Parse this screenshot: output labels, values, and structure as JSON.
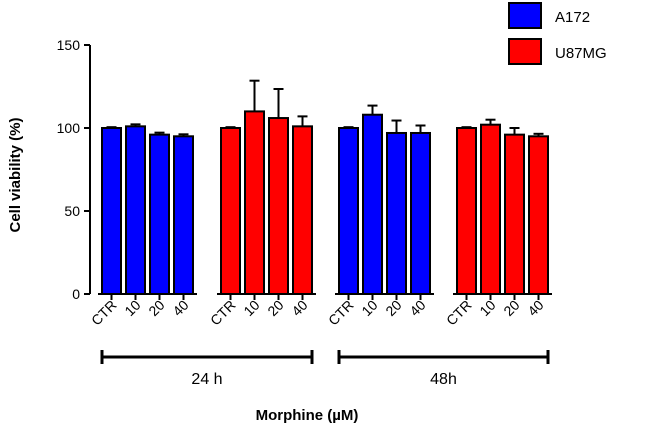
{
  "chart_data": {
    "type": "bar",
    "title": "",
    "ylabel": "Cell viability (%)",
    "xlabel": "Morphine (µM)",
    "ylim": [
      0,
      150
    ],
    "yticks": [
      0,
      50,
      100,
      150
    ],
    "legend": [
      {
        "name": "A172",
        "color": "#0000ff"
      },
      {
        "name": "U87MG",
        "color": "#ff0000"
      }
    ],
    "legend_position": "top-right",
    "groups": [
      {
        "label": "24 h",
        "series_blocks": [
          {
            "series": "A172",
            "categories": [
              "CTR",
              "10",
              "20",
              "40"
            ],
            "values": [
              100,
              101,
              96,
              95
            ],
            "errors": [
              0.5,
              1.2,
              1.2,
              1.2
            ]
          },
          {
            "series": "U87MG",
            "categories": [
              "CTR",
              "10",
              "20",
              "40"
            ],
            "values": [
              100,
              110,
              106,
              101
            ],
            "errors": [
              0.5,
              18.5,
              17.5,
              6
            ]
          }
        ]
      },
      {
        "label": "48h",
        "series_blocks": [
          {
            "series": "A172",
            "categories": [
              "CTR",
              "10",
              "20",
              "40"
            ],
            "values": [
              100,
              108,
              97,
              97
            ],
            "errors": [
              0.5,
              5.5,
              7.5,
              4.5
            ]
          },
          {
            "series": "U87MG",
            "categories": [
              "CTR",
              "10",
              "20",
              "40"
            ],
            "values": [
              100,
              102,
              96,
              95
            ],
            "errors": [
              0.5,
              3,
              4,
              1.5
            ]
          }
        ]
      }
    ]
  }
}
